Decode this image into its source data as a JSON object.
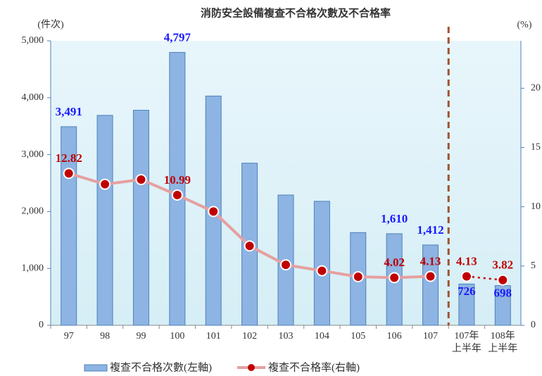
{
  "chart_data": {
    "type": "bar_line",
    "title": "消防安全設備複查不合格次數及不合格率",
    "y_label": "(件次)",
    "y2_label": "(%)",
    "categories": [
      "97",
      "98",
      "99",
      "100",
      "101",
      "102",
      "103",
      "104",
      "105",
      "106",
      "107",
      "107年\n上半年",
      "108年\n上半年"
    ],
    "series": [
      {
        "name": "複查不合格次數(左軸)",
        "kind": "bar",
        "color": "#8db4e2",
        "label_color": "#1a1aff",
        "values": [
          3491,
          3690,
          3780,
          4797,
          4030,
          2850,
          2290,
          2180,
          1630,
          1610,
          1412,
          726,
          698
        ],
        "value_labels": [
          "3,491",
          null,
          null,
          "4,797",
          null,
          null,
          null,
          null,
          null,
          "1,610",
          "1,412",
          "726",
          "698"
        ]
      },
      {
        "name": "複查不合格率(右軸)",
        "kind": "line",
        "axis": "y2",
        "color": "#e6a0a0",
        "marker_color": "#c00000",
        "label_color": "#c00000",
        "values": [
          12.82,
          11.9,
          12.3,
          10.99,
          9.6,
          6.7,
          5.1,
          4.6,
          4.1,
          4.02,
          4.13,
          4.13,
          3.82
        ],
        "value_labels": [
          "12.82",
          null,
          null,
          "10.99",
          null,
          null,
          null,
          null,
          null,
          "4.02",
          "4.13",
          "4.13",
          "3.82"
        ],
        "dotted_from": 11
      }
    ],
    "divider_after": 10,
    "ylim": [
      0,
      5000
    ],
    "yticks": [
      0,
      {
        "value": 1000,
        "label": "1,000"
      },
      {
        "value": 2000,
        "label": "2,000"
      },
      {
        "value": 3000,
        "label": "3,000"
      },
      {
        "value": 4000,
        "label": "4,000"
      },
      {
        "value": 5000,
        "label": "5,000"
      }
    ],
    "y2lim": [
      0,
      24
    ],
    "y2ticks": [
      0,
      5,
      10,
      15,
      20
    ]
  }
}
